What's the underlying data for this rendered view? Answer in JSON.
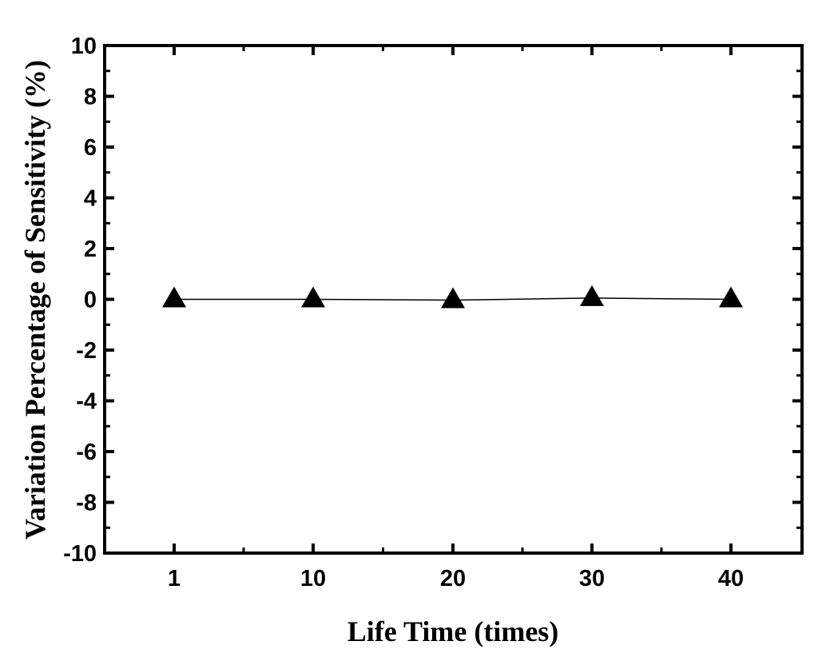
{
  "chart_data": {
    "type": "line",
    "title": "",
    "xlabel": "Life Time (times)",
    "ylabel": "Variation Percentage of Sensitivity (%)",
    "x_categories": [
      "1",
      "10",
      "20",
      "30",
      "40"
    ],
    "series": [
      {
        "marker": "triangle",
        "color": "#000000",
        "values": [
          0.0,
          0.0,
          -0.03,
          0.05,
          0.0
        ]
      }
    ],
    "ylim": [
      -10,
      10
    ],
    "y_ticks": [
      -10,
      -8,
      -6,
      -4,
      -2,
      0,
      2,
      4,
      6,
      8,
      10
    ],
    "y_tick_labels": [
      "-10",
      "-8",
      "-6",
      "-4",
      "-2",
      "0",
      "2",
      "4",
      "6",
      "8",
      "10"
    ],
    "grid": false,
    "legend": "none"
  }
}
